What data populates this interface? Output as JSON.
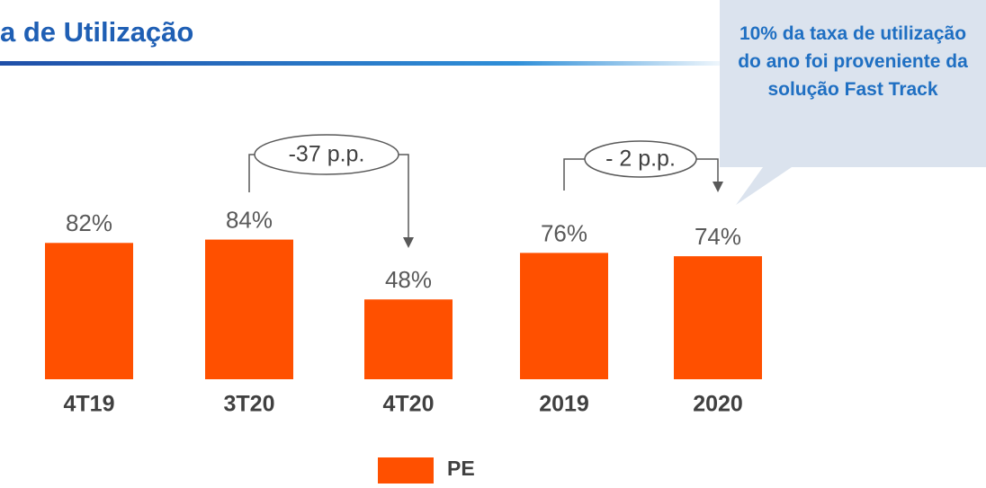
{
  "chart_data": {
    "type": "bar",
    "title": "a de Utilização",
    "categories": [
      "4T19",
      "3T20",
      "4T20",
      "2019",
      "2020"
    ],
    "series": [
      {
        "name": "PE",
        "color": "#ff5000",
        "values": [
          82,
          84,
          48,
          76,
          74
        ],
        "value_labels": [
          "82%",
          "84%",
          "48%",
          "76%",
          "74%"
        ]
      }
    ],
    "annotations": [
      "-37 p.p.",
      "- 2 p.p."
    ],
    "callout": "10% da taxa de utilização do ano foi proveniente da solução Fast Track",
    "ylim": [
      0,
      100
    ]
  }
}
